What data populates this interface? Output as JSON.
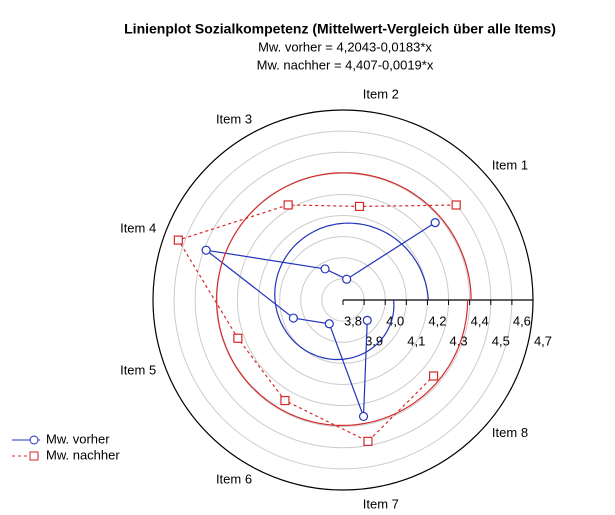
{
  "chart_data": {
    "type": "polar",
    "title": "Linienplot Sozialkompetenz (Mittelwert-Vergleich über alle Items)",
    "subtitles": [
      "Mw. vorher = 4,2043-0,0183*x",
      "Mw. nachher = 4,407-0,0019*x"
    ],
    "categories": [
      "Item 1",
      "Item 2",
      "Item 3",
      "Item 4",
      "Item 5",
      "Item 6",
      "Item 7",
      "Item 8"
    ],
    "series": [
      {
        "name": "Mw. vorher",
        "color": "#2233bb",
        "dashed": false,
        "marker": "circle",
        "values": [
          4.37,
          3.9,
          3.97,
          4.49,
          4.05,
          3.93,
          4.36,
          3.95
        ],
        "fit": {
          "intercept": 4.2043,
          "slope": -0.0183
        }
      },
      {
        "name": "Mw. nachher",
        "color": "#d42a2a",
        "dashed": true,
        "marker": "square",
        "values": [
          4.5,
          4.25,
          4.32,
          4.63,
          4.33,
          4.35,
          4.48,
          4.36
        ],
        "fit": {
          "intercept": 4.407,
          "slope": -0.0019
        }
      }
    ],
    "rlim": [
      3.8,
      4.7
    ],
    "rticks": [
      {
        "value": 3.8,
        "label": "3,8"
      },
      {
        "value": 3.9,
        "label": "3,9"
      },
      {
        "value": 4.0,
        "label": "4,0"
      },
      {
        "value": 4.1,
        "label": "4,1"
      },
      {
        "value": 4.2,
        "label": "4,2"
      },
      {
        "value": 4.3,
        "label": "4,3"
      },
      {
        "value": 4.4,
        "label": "4,4"
      },
      {
        "value": 4.5,
        "label": "4,5"
      },
      {
        "value": 4.6,
        "label": "4,6"
      },
      {
        "value": 4.7,
        "label": "4,7"
      }
    ],
    "grid": true,
    "legend": "lower left"
  }
}
